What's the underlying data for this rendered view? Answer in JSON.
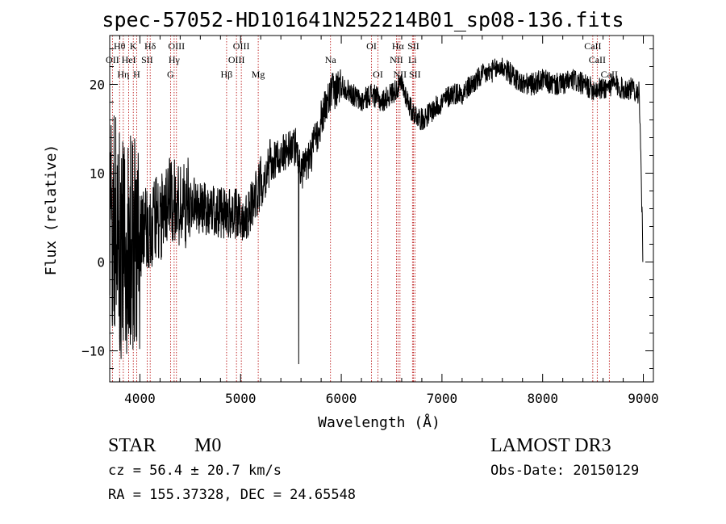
{
  "chart_data": {
    "type": "line",
    "title": "spec-57052-HD101641N252214B01_sp08-136.fits",
    "xlabel": "Wavelength (Å)",
    "ylabel": "Flux (relative)",
    "xlim": [
      3700,
      9100
    ],
    "ylim": [
      -13.5,
      25.5
    ],
    "xticks": [
      4000,
      5000,
      6000,
      7000,
      8000,
      9000
    ],
    "yticks": [
      -10,
      0,
      10,
      20
    ],
    "xtick_labels": [
      "4000",
      "5000",
      "6000",
      "7000",
      "8000",
      "9000"
    ],
    "ytick_labels": [
      "−10",
      "0",
      "10",
      "20"
    ],
    "series": [
      {
        "name": "spectrum",
        "color": "#000000",
        "anchor_points": [
          [
            3700,
            4
          ],
          [
            3750,
            5
          ],
          [
            3800,
            2
          ],
          [
            3850,
            0
          ],
          [
            3900,
            3
          ],
          [
            3950,
            2
          ],
          [
            4000,
            3
          ],
          [
            4100,
            4
          ],
          [
            4200,
            5
          ],
          [
            4300,
            7
          ],
          [
            4400,
            6
          ],
          [
            4500,
            7
          ],
          [
            4600,
            6
          ],
          [
            4700,
            6
          ],
          [
            4800,
            5.5
          ],
          [
            4900,
            5.5
          ],
          [
            5000,
            5
          ],
          [
            5100,
            6
          ],
          [
            5200,
            9
          ],
          [
            5300,
            11
          ],
          [
            5400,
            12
          ],
          [
            5500,
            13
          ],
          [
            5560,
            13
          ],
          [
            5600,
            10
          ],
          [
            5700,
            12
          ],
          [
            5800,
            16
          ],
          [
            5900,
            19
          ],
          [
            6000,
            20
          ],
          [
            6100,
            19
          ],
          [
            6200,
            18
          ],
          [
            6300,
            19
          ],
          [
            6400,
            18
          ],
          [
            6500,
            19
          ],
          [
            6600,
            20
          ],
          [
            6700,
            17
          ],
          [
            6800,
            16
          ],
          [
            6900,
            17
          ],
          [
            7000,
            18
          ],
          [
            7100,
            19
          ],
          [
            7200,
            19
          ],
          [
            7300,
            20
          ],
          [
            7400,
            21
          ],
          [
            7500,
            21.5
          ],
          [
            7600,
            22
          ],
          [
            7700,
            21
          ],
          [
            7800,
            20
          ],
          [
            7900,
            20
          ],
          [
            8000,
            20.5
          ],
          [
            8100,
            20
          ],
          [
            8200,
            20
          ],
          [
            8300,
            20.5
          ],
          [
            8400,
            20
          ],
          [
            8500,
            19.5
          ],
          [
            8600,
            19.5
          ],
          [
            8700,
            20
          ],
          [
            8800,
            19.5
          ],
          [
            8900,
            19.5
          ],
          [
            8960,
            19
          ],
          [
            8990,
            4
          ]
        ],
        "features": [
          {
            "x": 5577,
            "y": -11.5,
            "note": "deep absorption spike"
          },
          {
            "x": 8995,
            "y": 0,
            "note": "flux drops at red end"
          }
        ]
      }
    ],
    "lines": [
      {
        "label": "OII",
        "wavelength": 3727,
        "tier": 2
      },
      {
        "label": "Hθ",
        "wavelength": 3798,
        "tier": 1
      },
      {
        "label": "Hη",
        "wavelength": 3835,
        "tier": 3
      },
      {
        "label": "HeI",
        "wavelength": 3889,
        "tier": 2
      },
      {
        "label": "K",
        "wavelength": 3934,
        "tier": 1
      },
      {
        "label": "H",
        "wavelength": 3968,
        "tier": 3
      },
      {
        "label": "SII",
        "wavelength": 4072,
        "tier": 2
      },
      {
        "label": "Hδ",
        "wavelength": 4102,
        "tier": 1
      },
      {
        "label": "G",
        "wavelength": 4304,
        "tier": 3
      },
      {
        "label": "Hγ",
        "wavelength": 4340,
        "tier": 2
      },
      {
        "label": "OIII",
        "wavelength": 4363,
        "tier": 1
      },
      {
        "label": "Hβ",
        "wavelength": 4861,
        "tier": 3
      },
      {
        "label": "OIII",
        "wavelength": 4959,
        "tier": 2
      },
      {
        "label": "OIII",
        "wavelength": 5007,
        "tier": 1
      },
      {
        "label": "Mg",
        "wavelength": 5175,
        "tier": 3
      },
      {
        "label": "Na",
        "wavelength": 5893,
        "tier": 2
      },
      {
        "label": "OI",
        "wavelength": 6300,
        "tier": 1
      },
      {
        "label": "OI",
        "wavelength": 6364,
        "tier": 3
      },
      {
        "label": "NII",
        "wavelength": 6548,
        "tier": 2
      },
      {
        "label": "Hα",
        "wavelength": 6563,
        "tier": 1
      },
      {
        "label": "NII",
        "wavelength": 6583,
        "tier": 3
      },
      {
        "label": "Li",
        "wavelength": 6707,
        "tier": 2
      },
      {
        "label": "SII",
        "wavelength": 6716,
        "tier": 1
      },
      {
        "label": "SII",
        "wavelength": 6731,
        "tier": 3
      },
      {
        "label": "CaII",
        "wavelength": 8498,
        "tier": 1
      },
      {
        "label": "CaII",
        "wavelength": 8542,
        "tier": 2
      },
      {
        "label": "CaII",
        "wavelength": 8662,
        "tier": 3
      }
    ],
    "colors": {
      "axes": "#000000",
      "line_markers": "#b40000"
    }
  },
  "info": {
    "class": "STAR",
    "subclass": "M0",
    "survey": "LAMOST DR3",
    "cz": "cz = 56.4 ± 20.7 km/s",
    "obs_date": "Obs-Date: 20150129",
    "coords": "RA = 155.37328, DEC =  24.65548"
  }
}
